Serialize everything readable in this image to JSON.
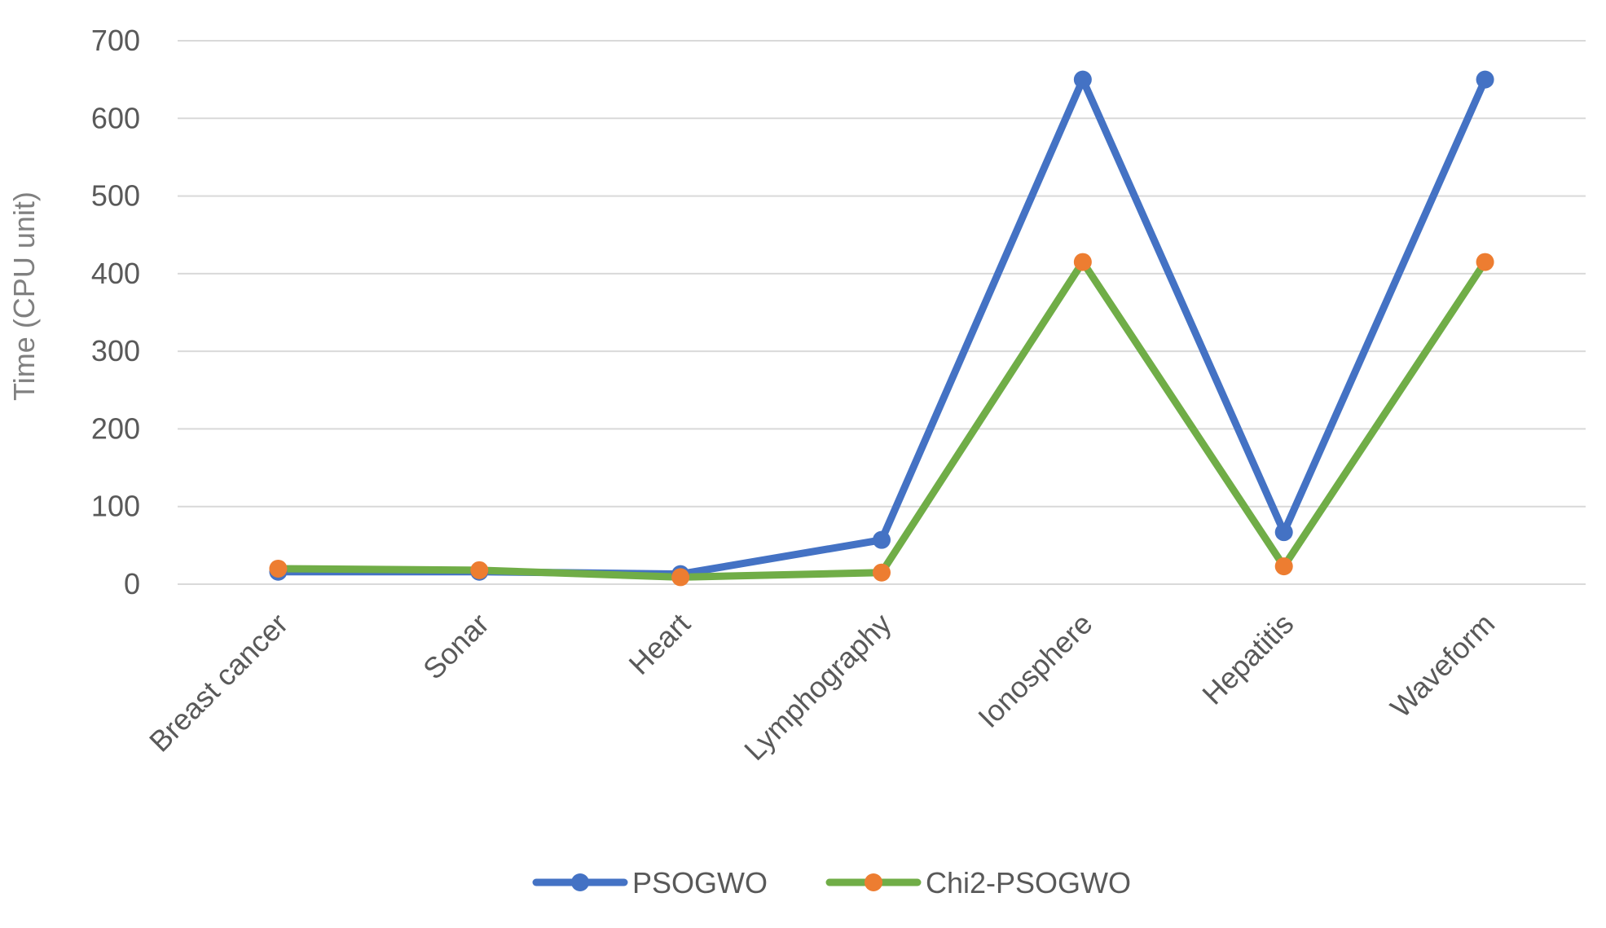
{
  "chart_data": {
    "type": "line",
    "title": "",
    "xlabel": "",
    "ylabel": "Time (CPU unit)",
    "ylim": [
      0,
      700
    ],
    "yticks": [
      0,
      100,
      200,
      300,
      400,
      500,
      600,
      700
    ],
    "grid": true,
    "legend_position": "bottom",
    "categories": [
      "Breast cancer",
      "Sonar",
      "Heart",
      "Lymphography",
      "Ionosphere",
      "Hepatitis",
      "Waveform"
    ],
    "series": [
      {
        "name": "PSOGWO",
        "values": [
          16,
          16,
          13,
          57,
          650,
          67,
          650
        ],
        "line_color": "#4472C4",
        "marker_color": "#4472C4"
      },
      {
        "name": "Chi2-PSOGWO",
        "values": [
          20,
          18,
          9,
          15,
          415,
          23,
          415
        ],
        "line_color": "#70AD47",
        "marker_color": "#ED7D31"
      }
    ]
  }
}
